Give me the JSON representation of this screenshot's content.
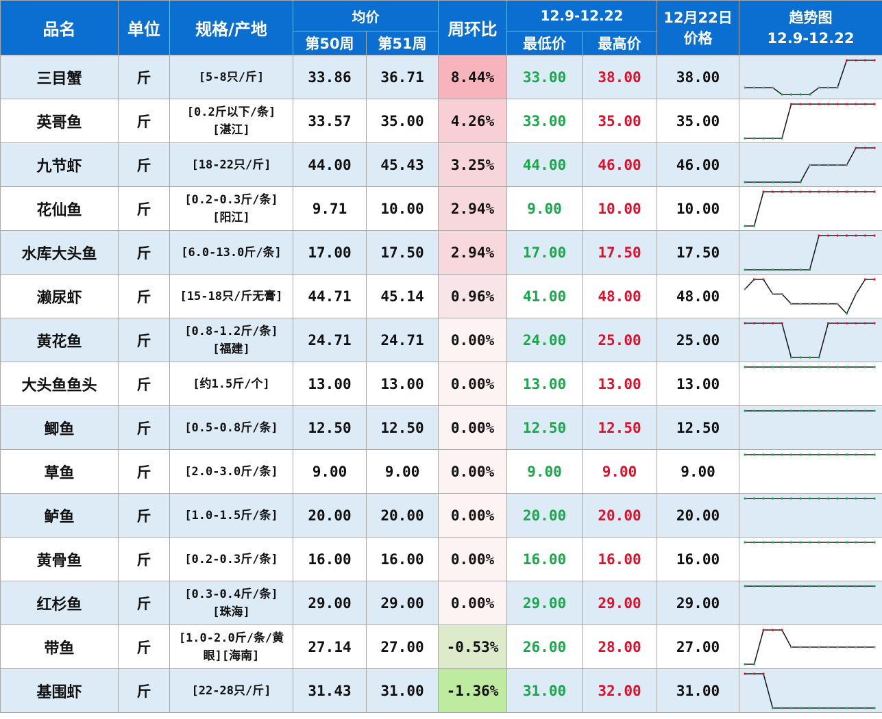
{
  "header": {
    "col_name": "品名",
    "col_unit": "单位",
    "col_spec": "规格/产地",
    "col_avg": "均价",
    "col_week50": "第50周",
    "col_week51": "第51周",
    "col_change": "周环比",
    "col_range": "12.9-12.22",
    "col_low": "最低价",
    "col_high": "最高价",
    "col_date_line1": "12月22日",
    "col_date_line2": "价格",
    "col_trend_line1": "趋势图",
    "col_trend_line2": "12.9-12.22"
  },
  "colors": {
    "header_bg": "#0a6fd1",
    "low_color": "#17a84a",
    "high_color": "#e0102a",
    "line_color": "#1f1f1f",
    "row_alt_bg": "#ddebf7"
  },
  "rows": [
    {
      "name": "三目蟹",
      "unit": "斤",
      "spec1": "[5-8只/斤]",
      "spec2": "",
      "w50": "33.86",
      "w51": "36.71",
      "change": "8.44%",
      "change_pct": 8.44,
      "low": "33.00",
      "high": "38.00",
      "price": "38.00",
      "trend": [
        34,
        34,
        34,
        34,
        33,
        33,
        33,
        33,
        34,
        34,
        34,
        38,
        38,
        38,
        38
      ]
    },
    {
      "name": "英哥鱼",
      "unit": "斤",
      "spec1": "[0.2斤以下/条]",
      "spec2": "[湛江]",
      "w50": "33.57",
      "w51": "35.00",
      "change": "4.26%",
      "change_pct": 4.26,
      "low": "33.00",
      "high": "35.00",
      "price": "35.00",
      "trend": [
        33,
        33,
        33,
        33,
        33,
        35,
        35,
        35,
        35,
        35,
        35,
        35,
        35,
        35,
        35
      ]
    },
    {
      "name": "九节虾",
      "unit": "斤",
      "spec1": "[18-22只/斤]",
      "spec2": "",
      "w50": "44.00",
      "w51": "45.43",
      "change": "3.25%",
      "change_pct": 3.25,
      "low": "44.00",
      "high": "46.00",
      "price": "46.00",
      "trend": [
        44,
        44,
        44,
        44,
        44,
        44,
        44,
        45,
        45,
        45,
        45,
        45,
        46,
        46,
        46
      ]
    },
    {
      "name": "花仙鱼",
      "unit": "斤",
      "spec1": "[0.2-0.3斤/条]",
      "spec2": "[阳江]",
      "w50": "9.71",
      "w51": "10.00",
      "change": "2.94%",
      "change_pct": 2.94,
      "low": "9.00",
      "high": "10.00",
      "price": "10.00",
      "trend": [
        9,
        9,
        10,
        10,
        10,
        10,
        10,
        10,
        10,
        10,
        10,
        10,
        10,
        10,
        10
      ]
    },
    {
      "name": "水库大头鱼",
      "unit": "斤",
      "spec1": "[6.0-13.0斤/条]",
      "spec2": "",
      "w50": "17.00",
      "w51": "17.50",
      "change": "2.94%",
      "change_pct": 2.94,
      "low": "17.00",
      "high": "17.50",
      "price": "17.50",
      "trend": [
        17,
        17,
        17,
        17,
        17,
        17,
        17,
        17,
        17.5,
        17.5,
        17.5,
        17.5,
        17.5,
        17.5,
        17.5
      ]
    },
    {
      "name": "濑尿虾",
      "unit": "斤",
      "spec1": "[15-18只/斤无膏]",
      "spec2": "",
      "w50": "44.71",
      "w51": "45.14",
      "change": "0.96%",
      "change_pct": 0.96,
      "low": "41.00",
      "high": "48.00",
      "price": "48.00",
      "trend": [
        46,
        48,
        48,
        45,
        45,
        43,
        43,
        43,
        43,
        43,
        43,
        41,
        45,
        48,
        48
      ]
    },
    {
      "name": "黄花鱼",
      "unit": "斤",
      "spec1": "[0.8-1.2斤/条]",
      "spec2": "[福建]",
      "w50": "24.71",
      "w51": "24.71",
      "change": "0.00%",
      "change_pct": 0,
      "low": "24.00",
      "high": "25.00",
      "price": "25.00",
      "trend": [
        25,
        25,
        25,
        25,
        25,
        24,
        24,
        24,
        24,
        25,
        25,
        25,
        25,
        25,
        25
      ]
    },
    {
      "name": "大头鱼鱼头",
      "unit": "斤",
      "spec1": "[约1.5斤/个]",
      "spec2": "",
      "w50": "13.00",
      "w51": "13.00",
      "change": "0.00%",
      "change_pct": 0,
      "low": "13.00",
      "high": "13.00",
      "price": "13.00",
      "trend": [
        13,
        13,
        13,
        13,
        13,
        13,
        13,
        13,
        13,
        13,
        13,
        13,
        13,
        13,
        13
      ]
    },
    {
      "name": "鲫鱼",
      "unit": "斤",
      "spec1": "[0.5-0.8斤/条]",
      "spec2": "",
      "w50": "12.50",
      "w51": "12.50",
      "change": "0.00%",
      "change_pct": 0,
      "low": "12.50",
      "high": "12.50",
      "price": "12.50",
      "trend": [
        12.5,
        12.5,
        12.5,
        12.5,
        12.5,
        12.5,
        12.5,
        12.5,
        12.5,
        12.5,
        12.5,
        12.5,
        12.5,
        12.5,
        12.5
      ]
    },
    {
      "name": "草鱼",
      "unit": "斤",
      "spec1": "[2.0-3.0斤/条]",
      "spec2": "",
      "w50": "9.00",
      "w51": "9.00",
      "change": "0.00%",
      "change_pct": 0,
      "low": "9.00",
      "high": "9.00",
      "price": "9.00",
      "trend": [
        9,
        9,
        9,
        9,
        9,
        9,
        9,
        9,
        9,
        9,
        9,
        9,
        9,
        9,
        9
      ]
    },
    {
      "name": "鲈鱼",
      "unit": "斤",
      "spec1": "[1.0-1.5斤/条]",
      "spec2": "",
      "w50": "20.00",
      "w51": "20.00",
      "change": "0.00%",
      "change_pct": 0,
      "low": "20.00",
      "high": "20.00",
      "price": "20.00",
      "trend": [
        20,
        20,
        20,
        20,
        20,
        20,
        20,
        20,
        20,
        20,
        20,
        20,
        20,
        20,
        20
      ]
    },
    {
      "name": "黄骨鱼",
      "unit": "斤",
      "spec1": "[0.2-0.3斤/条]",
      "spec2": "",
      "w50": "16.00",
      "w51": "16.00",
      "change": "0.00%",
      "change_pct": 0,
      "low": "16.00",
      "high": "16.00",
      "price": "16.00",
      "trend": [
        16,
        16,
        16,
        16,
        16,
        16,
        16,
        16,
        16,
        16,
        16,
        16,
        16,
        16,
        16
      ]
    },
    {
      "name": "红杉鱼",
      "unit": "斤",
      "spec1": "[0.3-0.4斤/条]",
      "spec2": "[珠海]",
      "w50": "29.00",
      "w51": "29.00",
      "change": "0.00%",
      "change_pct": 0,
      "low": "29.00",
      "high": "29.00",
      "price": "29.00",
      "trend": [
        29,
        29,
        29,
        29,
        29,
        29,
        29,
        29,
        29,
        29,
        29,
        29,
        29,
        29,
        29
      ]
    },
    {
      "name": "带鱼",
      "unit": "斤",
      "spec1": "[1.0-2.0斤/条/黄",
      "spec2": "眼][海南]",
      "w50": "27.14",
      "w51": "27.00",
      "change": "-0.53%",
      "change_pct": -0.53,
      "low": "26.00",
      "high": "28.00",
      "price": "27.00",
      "trend": [
        26,
        26,
        28,
        28,
        28,
        27,
        27,
        27,
        27,
        27,
        27,
        27,
        27,
        27,
        27
      ]
    },
    {
      "name": "基围虾",
      "unit": "斤",
      "spec1": "[22-28只/斤]",
      "spec2": "",
      "w50": "31.43",
      "w51": "31.00",
      "change": "-1.36%",
      "change_pct": -1.36,
      "low": "31.00",
      "high": "32.00",
      "price": "31.00",
      "trend": [
        32,
        32,
        32,
        31,
        31,
        31,
        31,
        31,
        31,
        31,
        31,
        31,
        31,
        31,
        31
      ]
    }
  ]
}
